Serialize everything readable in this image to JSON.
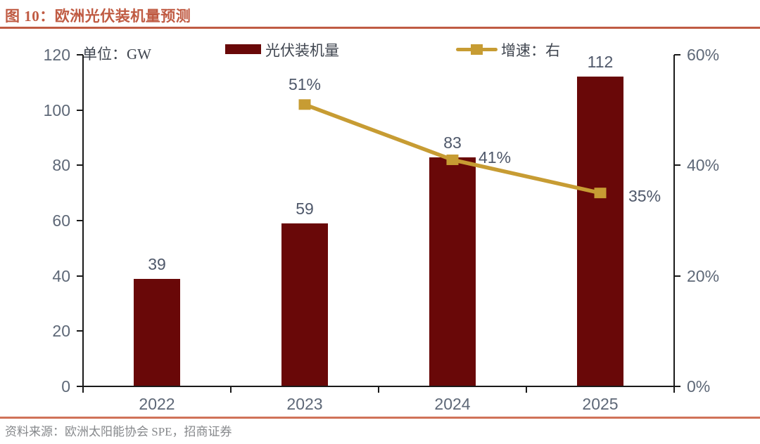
{
  "header": {
    "title": "图 10：欧洲光伏装机量预测"
  },
  "unit_label": "单位：GW",
  "legend": [
    {
      "label": "光伏装机量",
      "swatch": "bar-swatch",
      "color": "#690808"
    },
    {
      "label": "增速：右",
      "swatch": "line-square-swatch",
      "color": "#c79c33"
    }
  ],
  "footer": {
    "source": "资料来源：欧洲太阳能协会 SPE，招商证券"
  },
  "colors": {
    "bar": "#690808",
    "line": "#c79c33",
    "title_accent": "#c05b43",
    "bottom_rule": "#d07258",
    "axis": "#1a1a1a",
    "tick_label": "#5e6877",
    "data_label": "#4f586a",
    "text": "#3f454f",
    "source_text": "#86888b"
  },
  "chart_data": {
    "type": "bar",
    "subtype": "bar+line combo, line on secondary right axis",
    "title": "图 10：欧洲光伏装机量预测",
    "categories": [
      "2022",
      "2023",
      "2024",
      "2025"
    ],
    "series": [
      {
        "name": "光伏装机量",
        "type": "bar",
        "axis": "left",
        "values": [
          39,
          59,
          83,
          112
        ],
        "data_labels": [
          "39",
          "59",
          "83",
          "112"
        ],
        "color": "#690808"
      },
      {
        "name": "增速：右",
        "type": "line",
        "axis": "right",
        "values": [
          null,
          51,
          41,
          35
        ],
        "data_labels": [
          null,
          "51%",
          "41%",
          "35%"
        ],
        "color": "#c79c33",
        "marker": "square"
      }
    ],
    "left_axis": {
      "label": "单位：GW",
      "min": 0,
      "max": 120,
      "tick_step": 20,
      "tick_labels": [
        "0",
        "20",
        "40",
        "60",
        "80",
        "100",
        "120"
      ]
    },
    "right_axis": {
      "min": 0,
      "max": 60,
      "tick_step": 20,
      "tick_labels": [
        "0%",
        "20%",
        "40%",
        "60%"
      ]
    },
    "grid": false,
    "legend_position": "top",
    "source": "资料来源：欧洲太阳能协会 SPE，招商证券"
  }
}
